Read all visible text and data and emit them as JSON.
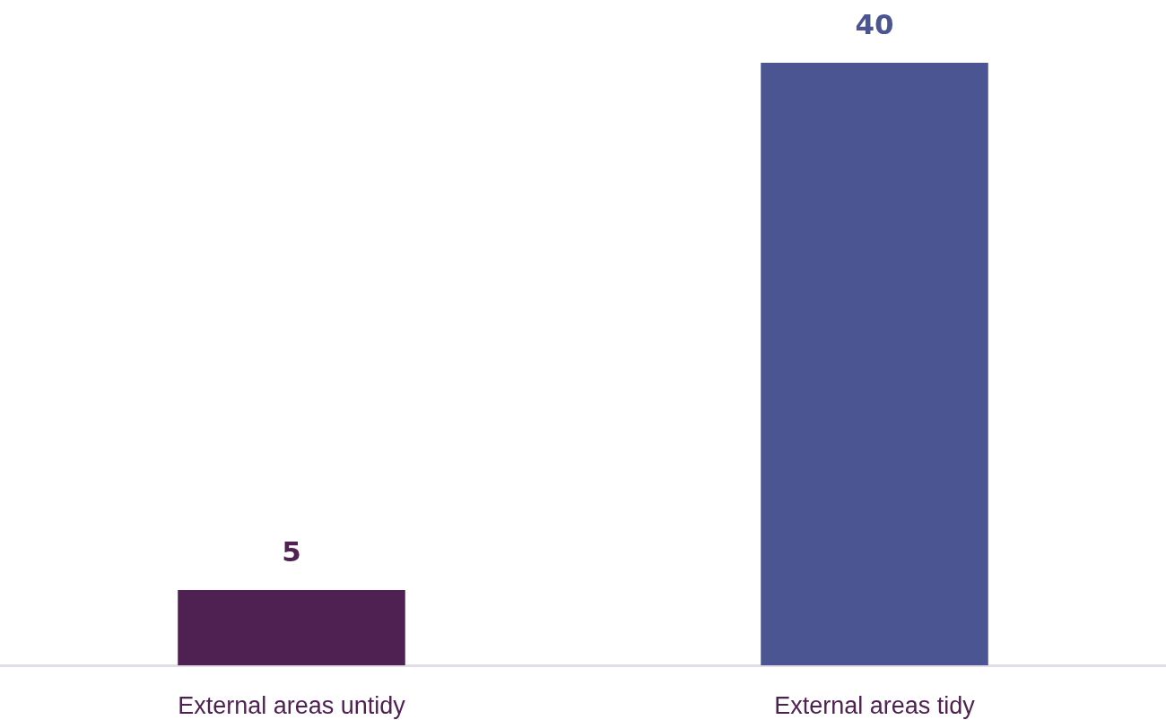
{
  "chart_data": {
    "type": "bar",
    "categories": [
      "External areas untidy",
      "External areas tidy"
    ],
    "values": [
      5,
      40
    ],
    "colors": [
      "#4f2153",
      "#4b5591"
    ],
    "data_labels": true,
    "grid": false,
    "legend": false,
    "tick_labels": "x"
  }
}
